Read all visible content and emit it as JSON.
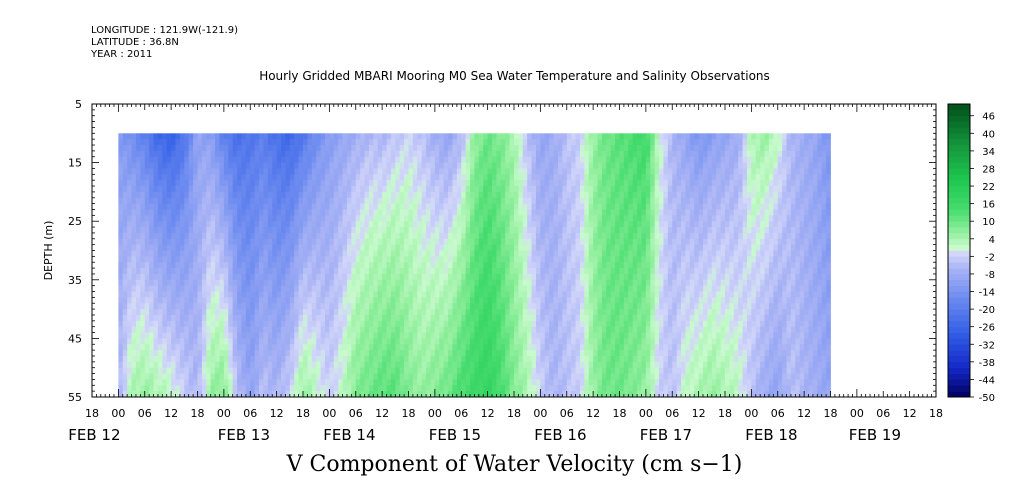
{
  "header": {
    "longitude": "LONGITUDE : 121.9W(-121.9)",
    "latitude": "LATITUDE : 36.8N",
    "year": "YEAR : 2011"
  },
  "chart_data": {
    "type": "heatmap",
    "title": "Hourly Gridded MBARI Mooring M0 Sea Water Temperature and Salinity Observations",
    "variable_label": "V Component of Water Velocity (cm s−1)",
    "ylabel": "DEPTH (m)",
    "y_reversed": true,
    "ylim": [
      5,
      55
    ],
    "y_ticks": [
      5,
      15,
      25,
      35,
      45,
      55
    ],
    "data_depth_range": [
      10,
      55
    ],
    "x_hour_range": [
      -6,
      186
    ],
    "x_start_label": "18 (FEB 11)",
    "x_hour_tick_labels": [
      "18",
      "00",
      "06",
      "12",
      "18",
      "00",
      "06",
      "12",
      "18",
      "00",
      "06",
      "12",
      "18",
      "00",
      "06",
      "12",
      "18",
      "00",
      "06",
      "12",
      "18",
      "00",
      "06",
      "12",
      "18",
      "00",
      "06",
      "12",
      "18",
      "00",
      "06",
      "12",
      "18"
    ],
    "x_date_labels": [
      "FEB 12",
      "FEB 13",
      "FEB 14",
      "FEB 15",
      "FEB 16",
      "FEB 17",
      "FEB 18",
      "FEB 19"
    ],
    "data_hour_range": [
      0,
      162
    ],
    "colorbar": {
      "min": -50,
      "max": 50,
      "step": 2,
      "tick_labels": [
        "46",
        "40",
        "34",
        "28",
        "22",
        "16",
        "10",
        "4",
        "-2",
        "-8",
        "-14",
        "-20",
        "-26",
        "-32",
        "-38",
        "-44",
        "-50"
      ],
      "low_color": "#000060",
      "mid_color": "#f4f6ff",
      "high_color": "#00501a"
    },
    "velocity_profile": {
      "hours": [
        0,
        3,
        6,
        9,
        12,
        15,
        18,
        21,
        24,
        27,
        30,
        33,
        36,
        39,
        42,
        45,
        48,
        51,
        54,
        57,
        60,
        63,
        66,
        69,
        72,
        75,
        78,
        81,
        84,
        87,
        90,
        93,
        96,
        99,
        102,
        105,
        108,
        111,
        114,
        117,
        120,
        123,
        126,
        129,
        132,
        135,
        138,
        141,
        144,
        147,
        150,
        153,
        156,
        159,
        162
      ],
      "surface_v": [
        -12,
        -16,
        -20,
        -26,
        -28,
        -22,
        -10,
        -12,
        -20,
        -24,
        -22,
        -20,
        -24,
        -26,
        -22,
        -16,
        -12,
        -10,
        -8,
        -6,
        -6,
        -4,
        -2,
        -4,
        -8,
        -10,
        -6,
        6,
        10,
        8,
        4,
        -4,
        -10,
        -8,
        -4,
        -2,
        6,
        10,
        12,
        14,
        16,
        2,
        -6,
        -10,
        -14,
        -12,
        -10,
        -8,
        4,
        6,
        2,
        -6,
        -8,
        -10,
        -14
      ],
      "bottom_v": [
        -6,
        4,
        6,
        4,
        2,
        -2,
        -6,
        6,
        8,
        -4,
        -10,
        -4,
        -6,
        -2,
        6,
        2,
        -2,
        2,
        8,
        10,
        12,
        12,
        8,
        6,
        8,
        10,
        14,
        16,
        18,
        14,
        8,
        4,
        -2,
        -6,
        -4,
        -2,
        6,
        10,
        10,
        8,
        6,
        -2,
        -4,
        2,
        4,
        6,
        4,
        2,
        -4,
        -8,
        -10,
        -4,
        -6,
        -8,
        -10
      ]
    }
  }
}
